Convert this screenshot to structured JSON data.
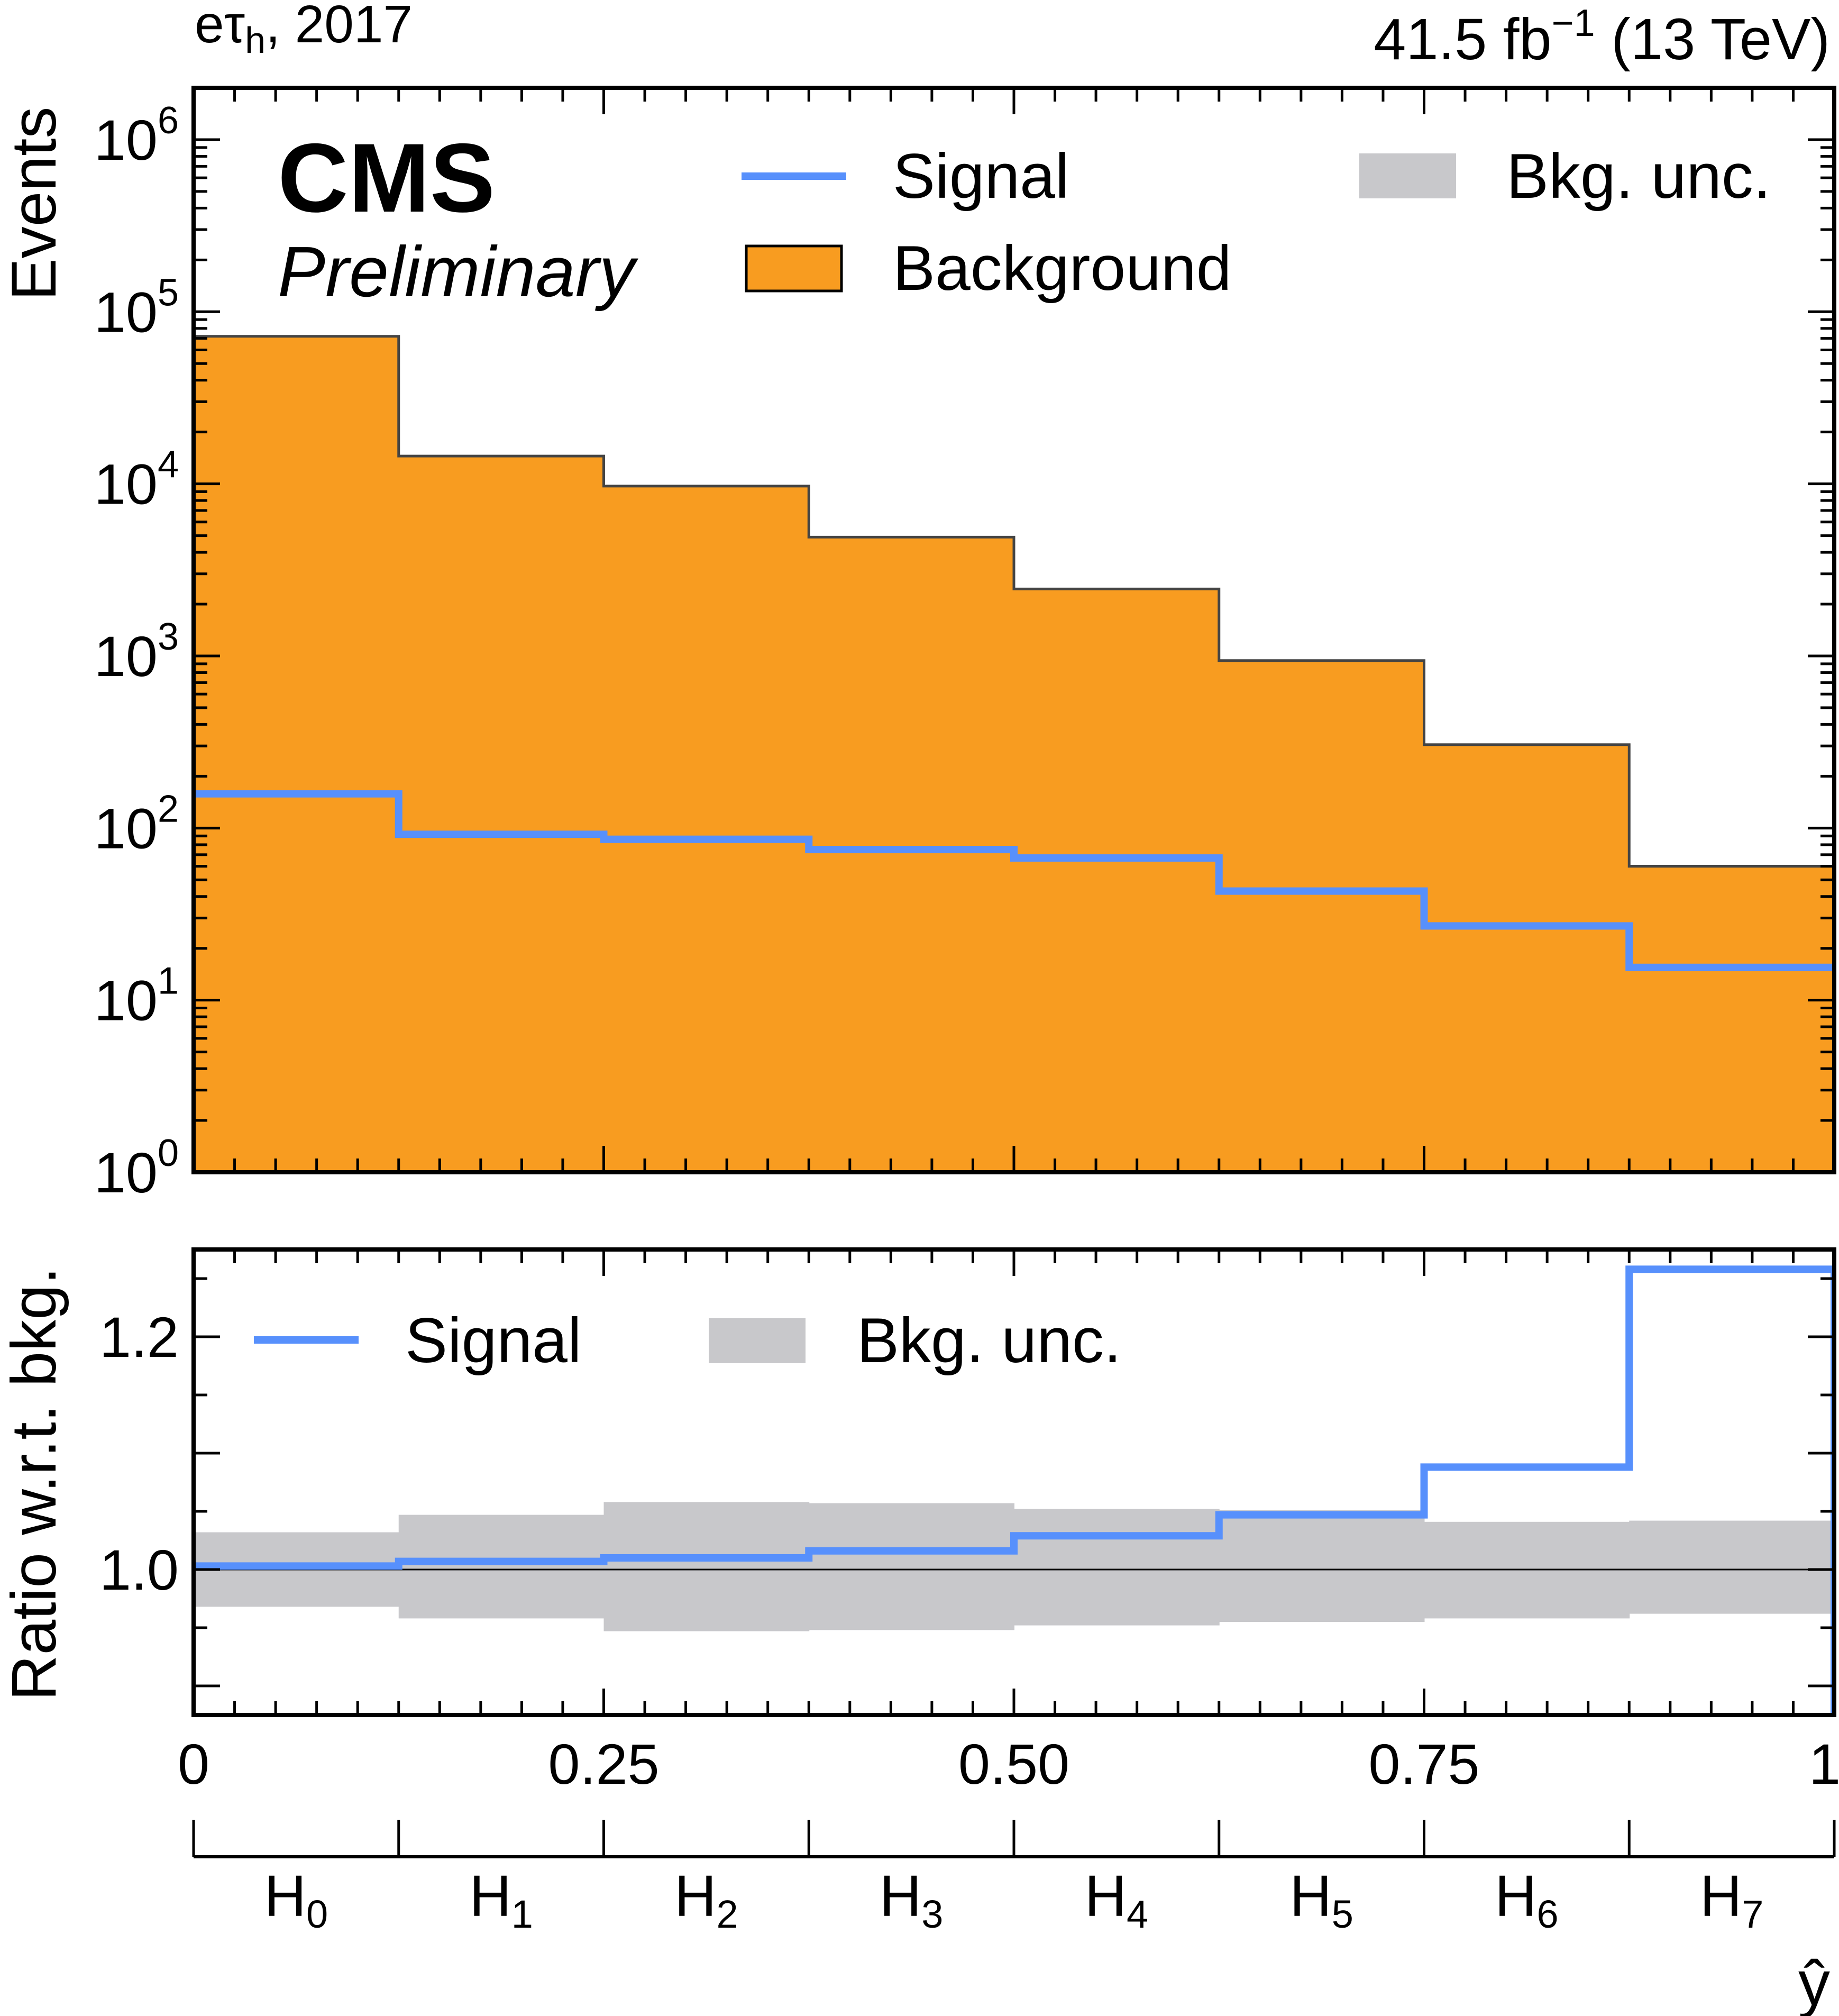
{
  "header": {
    "channel_main": "eτ",
    "channel_sub": "h",
    "channel_rest": ", 2017",
    "lumi_main": "41.5 fb",
    "lumi_sup": "−1",
    "lumi_rest": " (13 TeV)"
  },
  "labels": {
    "experiment": "CMS",
    "status": "Preliminary"
  },
  "chart_data": [
    {
      "type": "line",
      "panel": "main",
      "ylabel": "Events",
      "yscale": "log",
      "ylim": [
        1,
        2000000
      ],
      "ytick_labels": [
        {
          "base": "10",
          "exp": "0"
        },
        {
          "base": "10",
          "exp": "1"
        },
        {
          "base": "10",
          "exp": "2"
        },
        {
          "base": "10",
          "exp": "3"
        },
        {
          "base": "10",
          "exp": "4"
        },
        {
          "base": "10",
          "exp": "5"
        },
        {
          "base": "10",
          "exp": "6"
        }
      ],
      "bin_edges": [
        0,
        0.125,
        0.25,
        0.375,
        0.5,
        0.625,
        0.75,
        0.875,
        1.0
      ],
      "series": [
        {
          "name": "Background",
          "style": "filled-step",
          "color": "#f89c20",
          "values": [
            72000,
            14500,
            9700,
            4900,
            2450,
            940,
            305,
            60
          ]
        },
        {
          "name": "Signal",
          "style": "step",
          "color": "#5790fc",
          "values": [
            158,
            92,
            86,
            75,
            67,
            43,
            27,
            15.5
          ]
        }
      ],
      "legend": [
        {
          "label": "Signal",
          "kind": "line",
          "color": "#5790fc"
        },
        {
          "label": "Bkg. unc.",
          "kind": "box",
          "color": "#c8c8cb"
        },
        {
          "label": "Background",
          "kind": "box",
          "color": "#f89c20"
        }
      ]
    },
    {
      "type": "line",
      "panel": "ratio",
      "ylabel": "Ratio w.r.t. bkg.",
      "ylim": [
        0.875,
        1.275
      ],
      "yticks": [
        "1.0",
        "1.2"
      ],
      "xlim": [
        0,
        1
      ],
      "xticks": [
        "0",
        "0.25",
        "0.50",
        "0.75",
        "1"
      ],
      "bin_edges": [
        0,
        0.125,
        0.25,
        0.375,
        0.5,
        0.625,
        0.75,
        0.875,
        1.0
      ],
      "series": [
        {
          "name": "Signal",
          "style": "step",
          "color": "#5790fc",
          "values": [
            1.003,
            1.007,
            1.01,
            1.016,
            1.029,
            1.047,
            1.088,
            1.258
          ]
        },
        {
          "name": "Bkg. unc.",
          "style": "band",
          "color": "#c8c8cb",
          "lower": [
            0.968,
            0.958,
            0.947,
            0.948,
            0.952,
            0.955,
            0.958,
            0.962
          ],
          "upper": [
            1.032,
            1.047,
            1.058,
            1.057,
            1.052,
            1.051,
            1.041,
            1.042
          ]
        }
      ],
      "legend": [
        {
          "label": "Signal",
          "kind": "line",
          "color": "#5790fc"
        },
        {
          "label": "Bkg. unc.",
          "kind": "box",
          "color": "#c8c8cb"
        }
      ]
    },
    {
      "type": "table",
      "panel": "category-axis",
      "xlabel": "ŷ",
      "categories": [
        {
          "base": "H",
          "sub": "0"
        },
        {
          "base": "H",
          "sub": "1"
        },
        {
          "base": "H",
          "sub": "2"
        },
        {
          "base": "H",
          "sub": "3"
        },
        {
          "base": "H",
          "sub": "4"
        },
        {
          "base": "H",
          "sub": "5"
        },
        {
          "base": "H",
          "sub": "6"
        },
        {
          "base": "H",
          "sub": "7"
        }
      ]
    }
  ]
}
